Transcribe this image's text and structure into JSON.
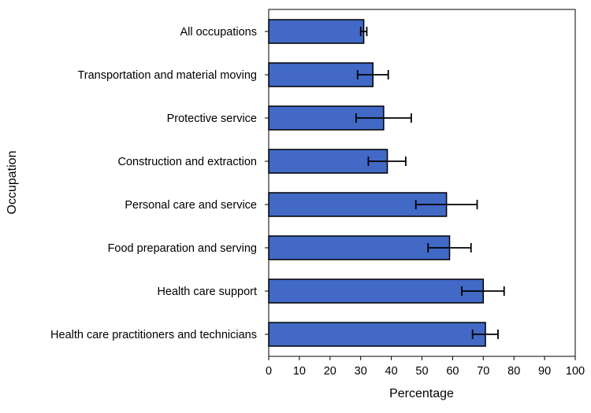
{
  "chart_data": {
    "type": "bar",
    "orientation": "horizontal",
    "categories": [
      "All occupations",
      "Transportation and material moving",
      "Protective service",
      "Construction and extraction",
      "Personal care and service",
      "Food preparation and serving",
      "Health care support",
      "Health care practitioners and technicians"
    ],
    "values": [
      31,
      34,
      37.5,
      38.7,
      58,
      59,
      70,
      70.7
    ],
    "error_low": [
      30,
      29,
      28.5,
      32.5,
      48,
      52,
      63,
      66.5
    ],
    "error_high": [
      32,
      39,
      46.5,
      44.7,
      68,
      66,
      76.8,
      74.8
    ],
    "xlabel": "Percentage",
    "ylabel": "Occupation",
    "xlim": [
      0,
      100
    ],
    "xticks": [
      0,
      10,
      20,
      30,
      40,
      50,
      60,
      70,
      80,
      90,
      100
    ],
    "grid": false,
    "bar_color": "#4169C5",
    "bar_edge_color": "#000000"
  }
}
